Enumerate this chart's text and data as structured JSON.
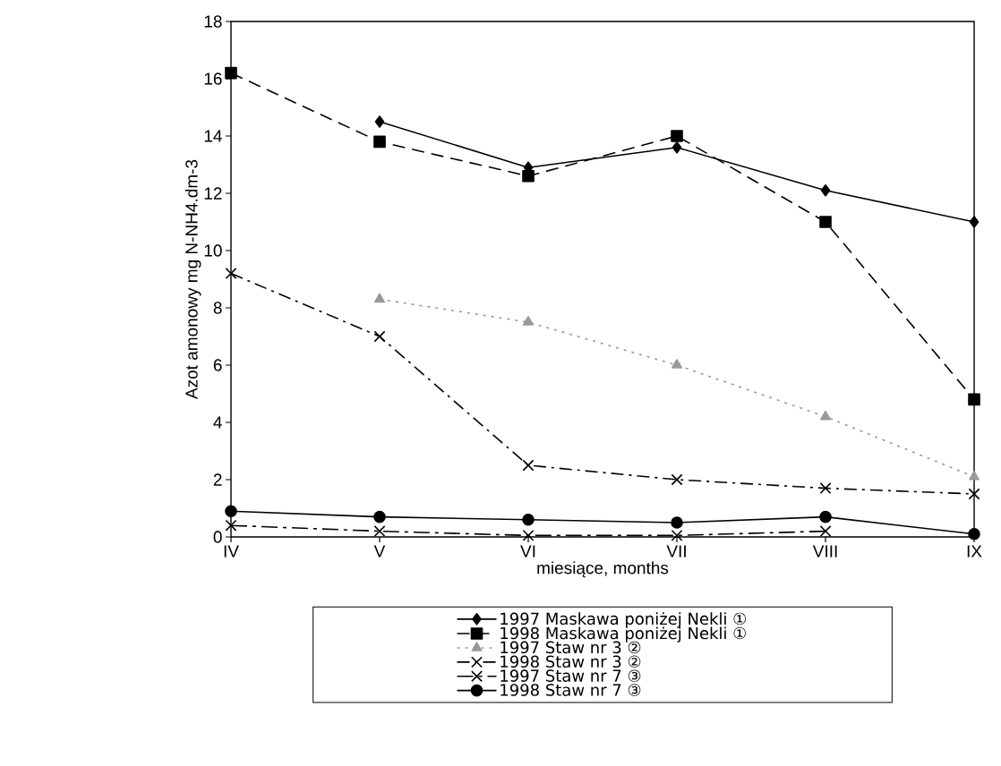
{
  "chart_data": {
    "type": "line",
    "xlabel": "miesiące, months",
    "ylabel": "Azot amonowy mg N-NH4.dm-3",
    "categories": [
      "IV",
      "V",
      "VI",
      "VII",
      "VIII",
      "IX"
    ],
    "ylim": [
      0,
      18
    ],
    "yticks": [
      0,
      2,
      4,
      6,
      8,
      10,
      12,
      14,
      16,
      18
    ],
    "legend": "bottom",
    "grid": false,
    "series": [
      {
        "name": "1997 Maskawa poniżej Nekli ①",
        "color": "#000000",
        "marker": "diamond",
        "line_style": "solid",
        "values": [
          null,
          14.5,
          12.9,
          13.6,
          12.1,
          11.0
        ]
      },
      {
        "name": "1998 Maskawa poniżej Nekli ①",
        "color": "#000000",
        "marker": "square",
        "line_style": "dashed",
        "values": [
          16.2,
          13.8,
          12.6,
          14.0,
          11.0,
          4.8
        ]
      },
      {
        "name": "1997 Staw nr 3 ②",
        "color": "#999999",
        "marker": "triangle",
        "line_style": "dotted",
        "values": [
          null,
          8.3,
          7.5,
          6.0,
          4.2,
          2.1
        ]
      },
      {
        "name": "1998 Staw nr 3 ②",
        "color": "#000000",
        "marker": "cross",
        "line_style": "dashdot",
        "values": [
          9.2,
          7.0,
          2.5,
          2.0,
          1.7,
          1.5
        ]
      },
      {
        "name": "1997 Staw nr 7 ③",
        "color": "#000000",
        "marker": "cross",
        "line_style": "longdashdot",
        "values": [
          0.4,
          0.2,
          0.05,
          0.05,
          0.2,
          null
        ]
      },
      {
        "name": "1998 Staw nr 7 ③",
        "color": "#000000",
        "marker": "circle",
        "line_style": "solid",
        "values": [
          0.9,
          0.7,
          0.6,
          0.5,
          0.7,
          0.1
        ]
      }
    ]
  }
}
